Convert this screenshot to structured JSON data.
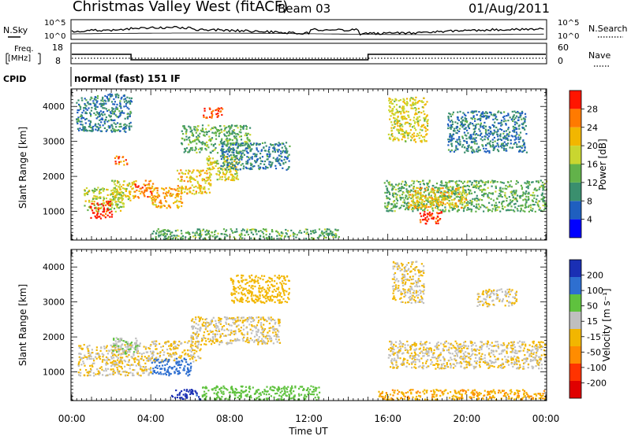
{
  "header": {
    "title": "Christmas Valley West (fitACF)",
    "beam": "Beam 03",
    "date": "01/Aug/2011"
  },
  "panels": {
    "nsky": {
      "label": "N.Sky",
      "tick_top": "10^5",
      "tick_bottom": "10^0",
      "right_tick_top": "10^5",
      "right_tick_bottom": "10^0",
      "right_label": "N.Search"
    },
    "freq": {
      "label_line1": "Freq.",
      "label_line2": "[MHz]",
      "tick_top": "18",
      "tick_bottom": "8",
      "right_tick_top": "60",
      "right_tick_bottom": "0",
      "right_label": "Nave",
      "freq_level_mhz": [
        {
          "from": 0,
          "to": 3,
          "value": 14
        },
        {
          "from": 3,
          "to": 15,
          "value": 10.5
        },
        {
          "from": 15,
          "to": 24,
          "value": 14
        }
      ]
    },
    "cpid": {
      "label": "CPID",
      "text": "normal (fast) 151 IF"
    }
  },
  "chart_data": [
    {
      "type": "heatmap",
      "name": "power",
      "ylabel": "Slant Range [km]",
      "xlabel": "",
      "xlim": [
        0,
        24
      ],
      "ylim": [
        180,
        4500
      ],
      "yticks": [
        "1000",
        "2000",
        "3000",
        "4000"
      ],
      "colorbar": {
        "label": "Power [dB]",
        "ticks": [
          "4",
          "8",
          "12",
          "16",
          "20",
          "24",
          "28"
        ],
        "range": [
          0,
          30
        ]
      },
      "regions": [
        {
          "x": [
            0.6,
            2.6
          ],
          "y": [
            1000,
            1700
          ],
          "value": 16
        },
        {
          "x": [
            0.9,
            2.0
          ],
          "y": [
            800,
            1300
          ],
          "value": 28
        },
        {
          "x": [
            2.0,
            3.2
          ],
          "y": [
            1300,
            1900
          ],
          "value": 18
        },
        {
          "x": [
            3.1,
            4.1
          ],
          "y": [
            1400,
            1900
          ],
          "value": 24
        },
        {
          "x": [
            4.0,
            5.6
          ],
          "y": [
            1100,
            1700
          ],
          "value": 22
        },
        {
          "x": [
            5.3,
            7.0
          ],
          "y": [
            1500,
            2200
          ],
          "value": 20
        },
        {
          "x": [
            6.8,
            8.5
          ],
          "y": [
            1900,
            2600
          ],
          "value": 18
        },
        {
          "x": [
            2.1,
            2.8
          ],
          "y": [
            2350,
            2600
          ],
          "value": 24
        },
        {
          "x": [
            6.6,
            7.6
          ],
          "y": [
            3700,
            4000
          ],
          "value": 26
        },
        {
          "x": [
            0.2,
            3.0
          ],
          "y": [
            3300,
            4400
          ],
          "value": 8
        },
        {
          "x": [
            5.5,
            9.0
          ],
          "y": [
            2700,
            3500
          ],
          "value": 12
        },
        {
          "x": [
            7.5,
            11.0
          ],
          "y": [
            2200,
            3000
          ],
          "value": 8
        },
        {
          "x": [
            4.0,
            13.5
          ],
          "y": [
            200,
            500
          ],
          "value": 12
        },
        {
          "x": [
            16.0,
            18.0
          ],
          "y": [
            3000,
            4300
          ],
          "value": 18
        },
        {
          "x": [
            15.8,
            24.0
          ],
          "y": [
            1000,
            1900
          ],
          "value": 12
        },
        {
          "x": [
            17.0,
            20.0
          ],
          "y": [
            1100,
            1700
          ],
          "value": 20
        },
        {
          "x": [
            17.6,
            18.8
          ],
          "y": [
            650,
            1000
          ],
          "value": 28
        },
        {
          "x": [
            19.0,
            23.0
          ],
          "y": [
            2700,
            3900
          ],
          "value": 8
        }
      ]
    },
    {
      "type": "heatmap",
      "name": "velocity",
      "ylabel": "Slant Range [km]",
      "xlabel": "Time UT",
      "xlim": [
        0,
        24
      ],
      "ylim": [
        180,
        4500
      ],
      "yticks": [
        "1000",
        "2000",
        "3000",
        "4000"
      ],
      "xticks": [
        "00:00",
        "04:00",
        "08:00",
        "12:00",
        "16:00",
        "20:00",
        "00:00"
      ],
      "colorbar": {
        "label": "Velocity [m s⁻¹]",
        "ticks": [
          "200",
          "100",
          "50",
          "15",
          "-15",
          "-50",
          "-100",
          "-200"
        ],
        "range": [
          -250,
          250
        ]
      },
      "regions": [
        {
          "x": [
            0.3,
            4.0
          ],
          "y": [
            900,
            1800
          ],
          "value": 0
        },
        {
          "x": [
            4.0,
            6.5
          ],
          "y": [
            1300,
            1900
          ],
          "value": 0
        },
        {
          "x": [
            6.0,
            10.5
          ],
          "y": [
            1800,
            2600
          ],
          "value": 0
        },
        {
          "x": [
            2.0,
            3.5
          ],
          "y": [
            1500,
            2000
          ],
          "value": -60
        },
        {
          "x": [
            4.0,
            6.0
          ],
          "y": [
            900,
            1400
          ],
          "value": -150
        },
        {
          "x": [
            5.0,
            6.5
          ],
          "y": [
            200,
            500
          ],
          "value": -200
        },
        {
          "x": [
            6.5,
            12.5
          ],
          "y": [
            200,
            600
          ],
          "value": -80
        },
        {
          "x": [
            16.0,
            24.0
          ],
          "y": [
            1100,
            1900
          ],
          "value": 0
        },
        {
          "x": [
            16.2,
            17.8
          ],
          "y": [
            3000,
            4200
          ],
          "value": 0
        },
        {
          "x": [
            20.5,
            22.5
          ],
          "y": [
            2900,
            3400
          ],
          "value": 0
        },
        {
          "x": [
            8.0,
            11.0
          ],
          "y": [
            3000,
            3800
          ],
          "value": 30
        },
        {
          "x": [
            15.5,
            24.0
          ],
          "y": [
            200,
            500
          ],
          "value": 60
        }
      ]
    }
  ],
  "colors": {
    "power_scale": [
      "#0000ff",
      "#1f5fbf",
      "#3a8f6e",
      "#62b24a",
      "#c9d630",
      "#f2b600",
      "#ff7a00",
      "#ff1500"
    ],
    "velocity_scale": [
      "#1a2fb4",
      "#2e6fd0",
      "#5fc23e",
      "#bfbfbf",
      "#f2b600",
      "#ff8c00",
      "#ff3300",
      "#e00000"
    ]
  }
}
